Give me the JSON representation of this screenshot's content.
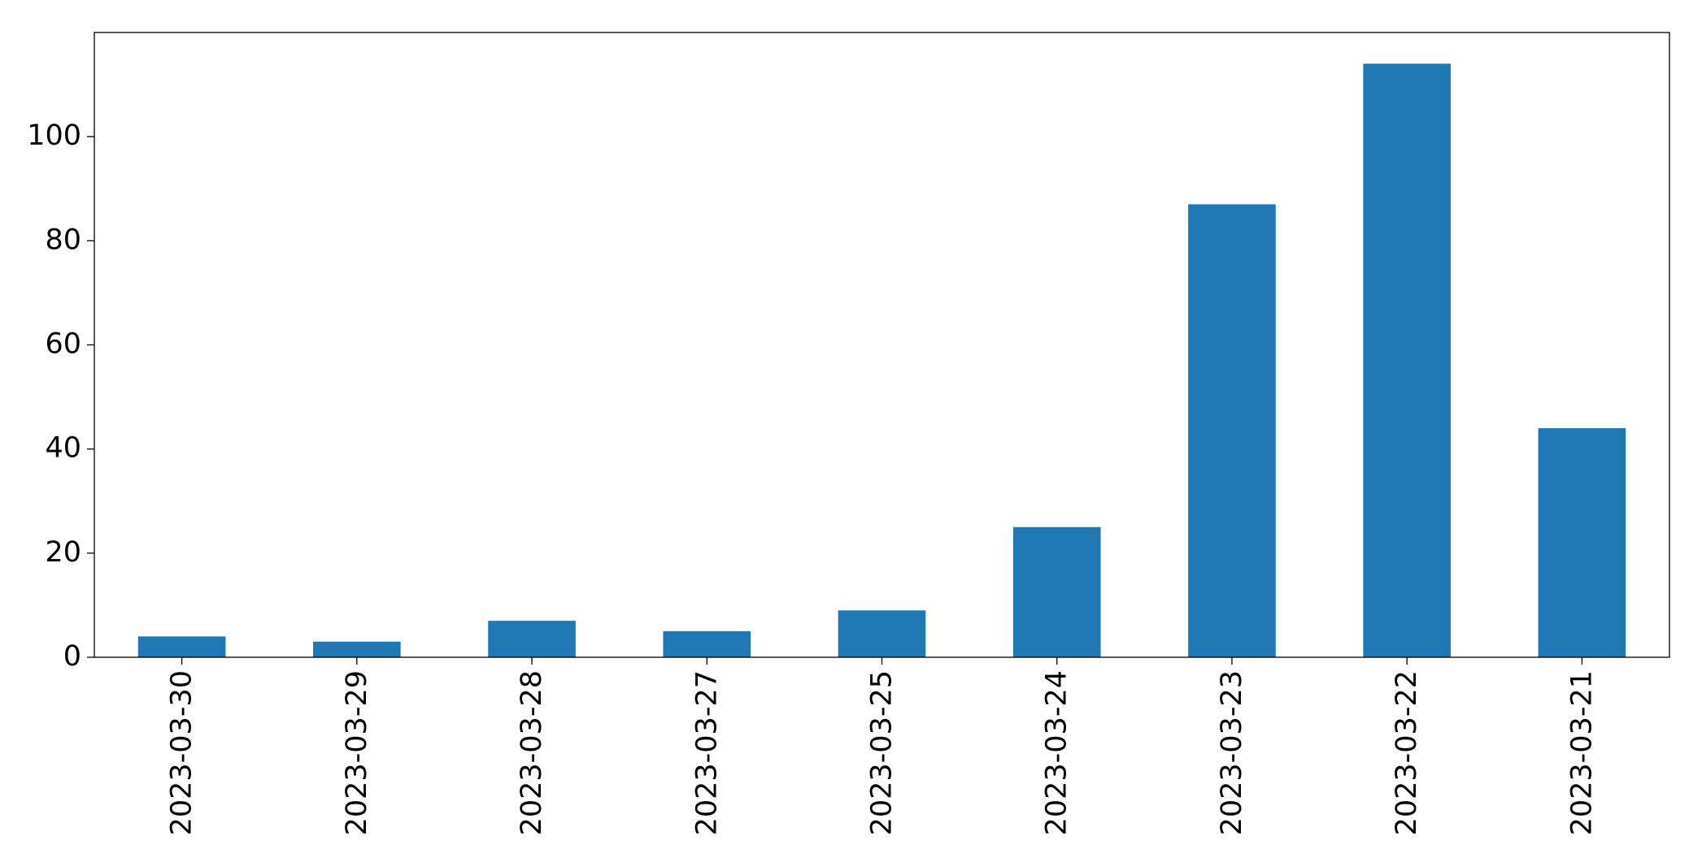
{
  "chart_data": {
    "type": "bar",
    "categories": [
      "2023-03-30",
      "2023-03-29",
      "2023-03-28",
      "2023-03-27",
      "2023-03-25",
      "2023-03-24",
      "2023-03-23",
      "2023-03-22",
      "2023-03-21"
    ],
    "values": [
      4,
      3,
      7,
      5,
      9,
      25,
      87,
      114,
      44
    ],
    "color": "#1f77b4",
    "ylim": [
      0,
      120
    ],
    "yticks": [
      0,
      20,
      40,
      60,
      80,
      100
    ],
    "grid": false
  }
}
